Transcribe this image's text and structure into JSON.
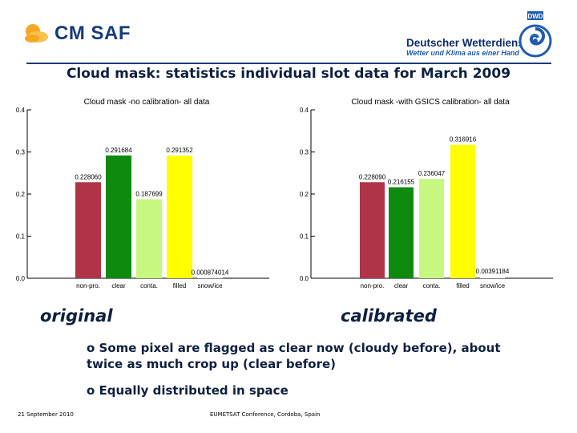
{
  "header": {
    "cm_saf_logo": "CM SAF",
    "dwd_name": "Deutscher Wetterdienst",
    "dwd_tagline": "Wetter und Klima aus einer Hand",
    "dwd_badge": "DWD"
  },
  "page_title": "Cloud mask: statistics individual slot data for March 2009",
  "chart_data": [
    {
      "type": "bar",
      "title": "Cloud mask -no calibration- all data",
      "categories": [
        "non-pro.",
        "clear",
        "conta.",
        "filled",
        "snow/ice"
      ],
      "values": [
        0.22806,
        0.291684,
        0.187699,
        0.291352,
        0.000874014
      ],
      "value_labels": [
        "0.228060",
        "0.291684",
        "0.187699",
        "0.291352",
        "0.000874014"
      ],
      "colors": [
        "#b03348",
        "#0e8a0e",
        "#c7f780",
        "#ffff00",
        "#ffffff"
      ],
      "ylim": [
        0,
        0.4
      ],
      "yticks": [
        "0.0",
        "0.1",
        "0.2",
        "0.3",
        "0.4"
      ],
      "xlabel": "",
      "ylabel": ""
    },
    {
      "type": "bar",
      "title": "Cloud mask -with GSICS calibration- all data",
      "categories": [
        "non-pro.",
        "clear",
        "conta.",
        "filled",
        "snow/ice"
      ],
      "values": [
        0.22809,
        0.216155,
        0.236047,
        0.316916,
        0.00391184
      ],
      "value_labels": [
        "0.228090",
        "0.216155",
        "0.236047",
        "0.316916",
        "0.00391184"
      ],
      "colors": [
        "#b03348",
        "#0e8a0e",
        "#c7f780",
        "#ffff00",
        "#ffffff"
      ],
      "ylim": [
        0,
        0.4
      ],
      "yticks": [
        "0.0",
        "0.1",
        "0.2",
        "0.3",
        "0.4"
      ],
      "xlabel": "",
      "ylabel": ""
    }
  ],
  "captions": {
    "left": "original",
    "right": "calibrated"
  },
  "bullets": [
    {
      "marker": "o",
      "text": "Some pixel are flagged as clear now (cloudy before), about twice as much crop up (clear before)"
    },
    {
      "marker": "o",
      "text": "Equally distributed in space"
    }
  ],
  "footer": {
    "date": "21 September 2010",
    "event": "EUMETSAT Conference, Cordoba, Spain"
  }
}
